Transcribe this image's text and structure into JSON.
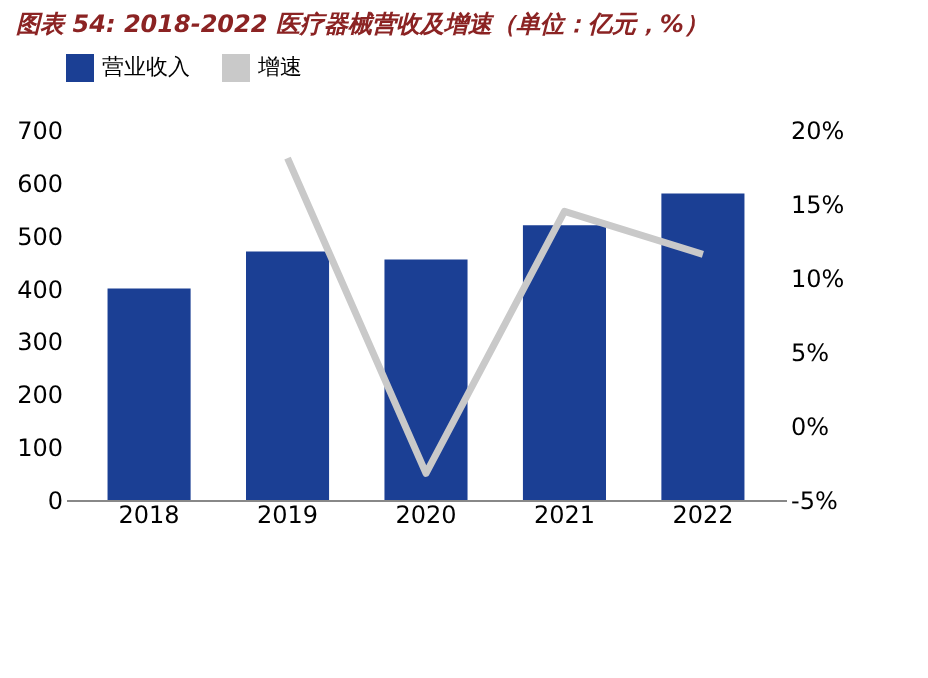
{
  "chart_data": {
    "type": "bar",
    "title": "图表 54: 2018-2022 医疗器械营收及增速（单位：亿元，%）",
    "categories": [
      "2018",
      "2019",
      "2020",
      "2021",
      "2022"
    ],
    "series": [
      {
        "name": "营业收入",
        "color": "#1b3f94",
        "values": [
          400,
          470,
          455,
          520,
          580
        ]
      },
      {
        "name": "增速",
        "type": "line",
        "axis": "y2",
        "color": "#c9c9c9",
        "values": [
          null,
          18.1,
          -3.2,
          14.5,
          11.6
        ]
      }
    ],
    "ylim": [
      0,
      700
    ],
    "yticks": [
      0,
      100,
      200,
      300,
      400,
      500,
      600,
      700
    ],
    "y2lim": [
      -5,
      20
    ],
    "y2ticks": [
      {
        "value": -5,
        "label": "-5%"
      },
      {
        "value": 0,
        "label": "0%"
      },
      {
        "value": 5,
        "label": "5%"
      },
      {
        "value": 10,
        "label": "10%"
      },
      {
        "value": 15,
        "label": "15%"
      },
      {
        "value": 20,
        "label": "20%"
      }
    ],
    "legend": "top",
    "grid": false,
    "marker": "none",
    "line_style": "solid"
  }
}
